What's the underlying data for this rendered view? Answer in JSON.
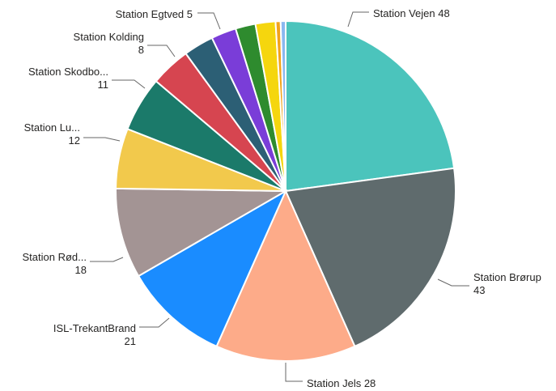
{
  "chart_data": {
    "type": "pie",
    "start_angle_deg": 0,
    "direction": "clockwise",
    "slices": [
      {
        "name": "Station Vejen",
        "value": 48,
        "color": "#4BC4BC",
        "label_line1": "Station Vejen 48",
        "label_line2": ""
      },
      {
        "name": "Station Brørup",
        "value": 43,
        "color": "#5F6B6D",
        "label_line1": "Station Brørup",
        "label_line2": "43"
      },
      {
        "name": "Station Jels",
        "value": 28,
        "color": "#FDAB89",
        "label_line1": "Station Jels 28",
        "label_line2": ""
      },
      {
        "name": "ISL-TrekantBrand",
        "value": 21,
        "color": "#1A8CFF",
        "label_line1": "ISL-TrekantBrand",
        "label_line2": "21"
      },
      {
        "name": "Station Rød...",
        "value": 18,
        "color": "#A39494",
        "label_line1": "Station Rød...",
        "label_line2": "18"
      },
      {
        "name": "Station Lu...",
        "value": 12,
        "color": "#F2C94C",
        "label_line1": "Station Lu...",
        "label_line2": "12"
      },
      {
        "name": "Station Skodbo...",
        "value": 11,
        "color": "#1B7A6A",
        "label_line1": "Station Skodbo...",
        "label_line2": "11"
      },
      {
        "name": "Station Kolding",
        "value": 8,
        "color": "#D64550",
        "label_line1": "Station Kolding",
        "label_line2": "8"
      },
      {
        "name": "Slice 9",
        "value": 6,
        "color": "#2C5F75",
        "label_line1": "",
        "label_line2": ""
      },
      {
        "name": "Station Egtved",
        "value": 5,
        "color": "#7A3DD8",
        "label_line1": "Station Egtved 5",
        "label_line2": ""
      },
      {
        "name": "Slice 11",
        "value": 4,
        "color": "#2E8B2E",
        "label_line1": "",
        "label_line2": ""
      },
      {
        "name": "Slice 12",
        "value": 4,
        "color": "#F5D60E",
        "label_line1": "",
        "label_line2": ""
      },
      {
        "name": "Slice 13",
        "value": 1,
        "color": "#F2A31A",
        "label_line1": "",
        "label_line2": ""
      },
      {
        "name": "Slice 14",
        "value": 1,
        "color": "#8AB8F0",
        "label_line1": "",
        "label_line2": ""
      }
    ]
  }
}
